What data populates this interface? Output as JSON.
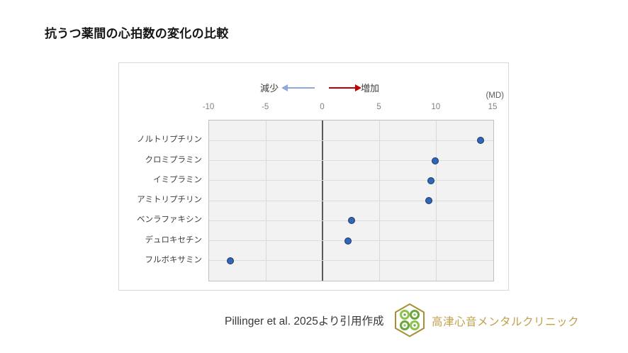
{
  "page": {
    "title": "抗うつ薬間の心拍数の変化の比較"
  },
  "chart": {
    "legend": {
      "decrease_label": "減少",
      "increase_label": "増加",
      "decrease_color": "#8ea9db",
      "increase_color": "#c00000"
    },
    "unit_label": "(MD)",
    "point_color": "#2f66b8",
    "point_border_color": "#1f3864",
    "plot_background": "#f2f2f2"
  },
  "chart_data": {
    "type": "scatter",
    "orientation": "horizontal-dot-plot",
    "title": "抗うつ薬間の心拍数の変化の比較",
    "categories": [
      "ノルトリプチリン",
      "クロミプラミン",
      "イミプラミン",
      "アミトリプチリン",
      "ベンラファキシン",
      "デュロキセチン",
      "フルボキサミン"
    ],
    "values": [
      13.9,
      9.9,
      9.5,
      9.3,
      2.5,
      2.2,
      -8.1
    ],
    "xlabel": "(MD)",
    "xlim": [
      -10,
      15
    ],
    "xticks": [
      -10,
      -5,
      0,
      5,
      10,
      15
    ],
    "grid": true,
    "zero_line": true,
    "legend_position": "top",
    "annotations": {
      "left_of_zero": "減少",
      "right_of_zero": "増加"
    }
  },
  "footer": {
    "source": "Pillinger et al. 2025より引用作成",
    "clinic_name": "高津心音メンタルクリニック",
    "clinic_color": "#bfa14a"
  }
}
